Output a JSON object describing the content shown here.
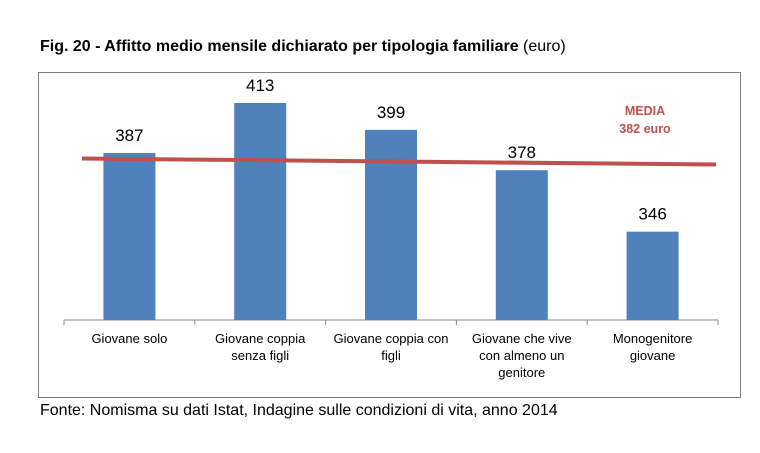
{
  "title": {
    "main": "Fig. 20 -  Affitto medio mensile dichiarato per tipologia familiare",
    "unit": "(euro)"
  },
  "source": "Fonte: Nomisma su dati Istat, Indagine sulle condizioni di vita, anno 2014",
  "chart_data": {
    "type": "bar",
    "title": "Affitto medio mensile dichiarato per tipologia familiare (euro)",
    "categories": [
      "Giovane solo",
      "Giovane coppia senza figli",
      "Giovane coppia con figli",
      "Giovane che vive con almeno un genitore",
      "Monogenitore giovane"
    ],
    "values": [
      387,
      413,
      399,
      378,
      346
    ],
    "data_labels": [
      "387",
      "413",
      "399",
      "378",
      "346"
    ],
    "reference_line": {
      "label": "MEDIA",
      "value_label": "382 euro",
      "value": 382,
      "color": "#c0504d"
    },
    "ylim": [
      300,
      415
    ],
    "grid": false,
    "bar_color": "#4f81bd"
  }
}
